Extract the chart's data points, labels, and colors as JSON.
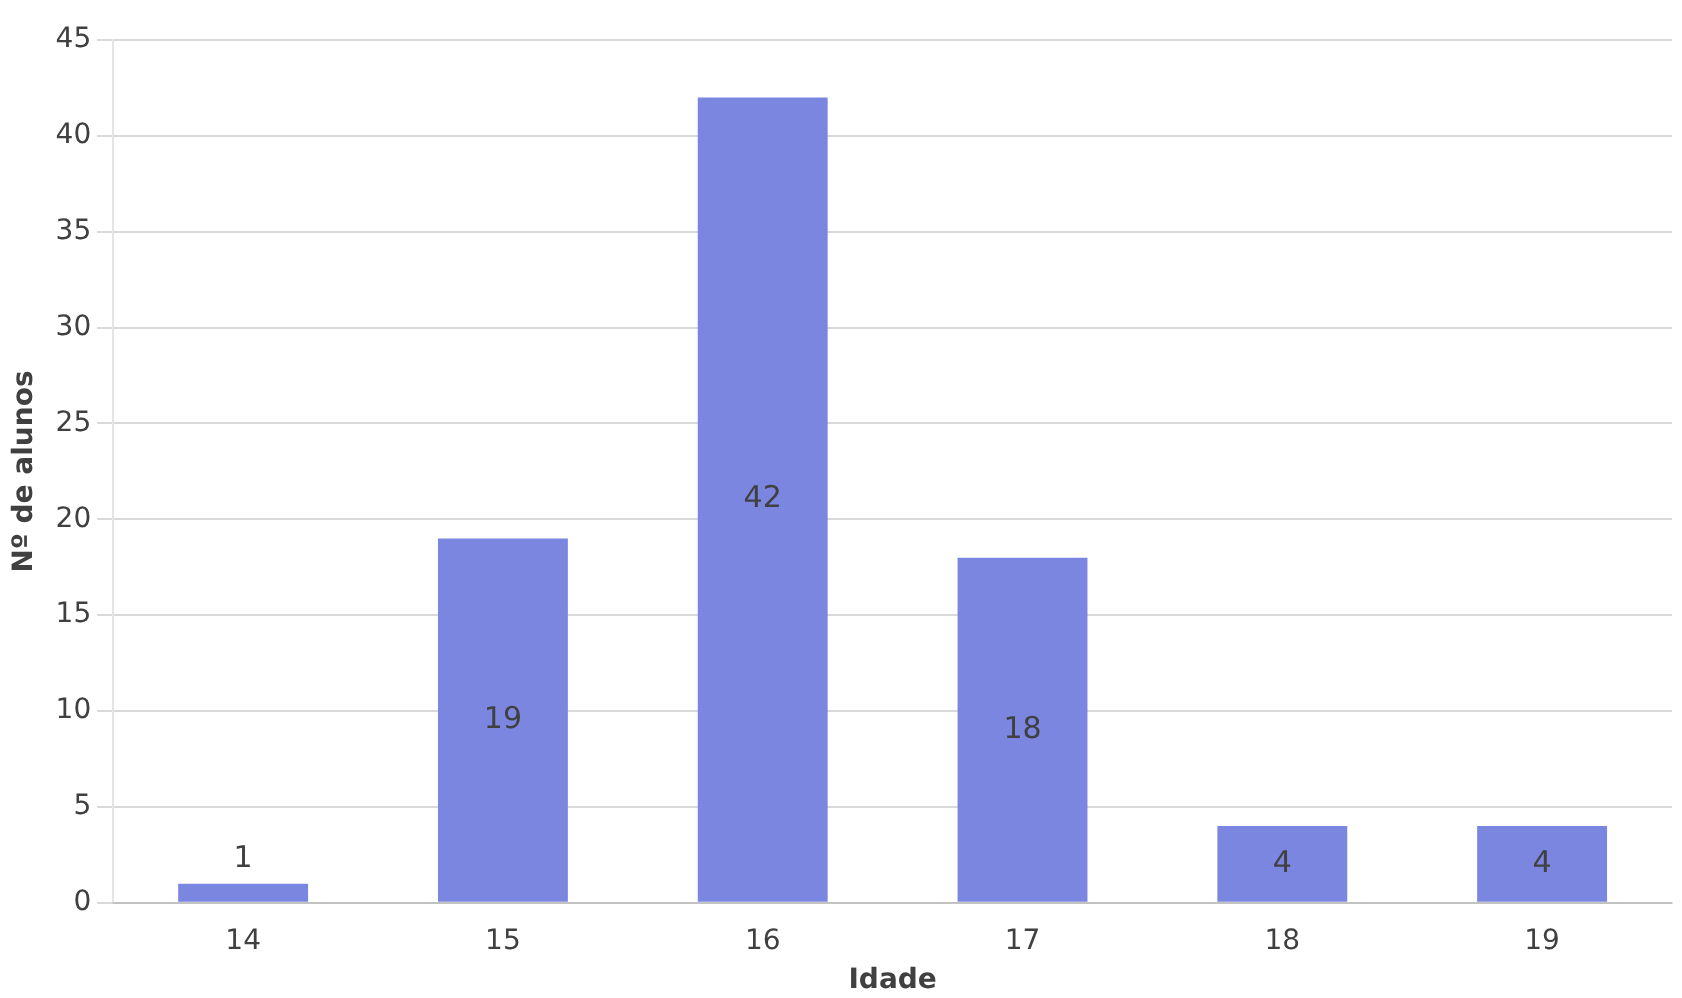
{
  "chart_data": {
    "type": "bar",
    "xlabel": "Idade",
    "ylabel": "Nº de alunos",
    "categories": [
      "14",
      "15",
      "16",
      "17",
      "18",
      "19"
    ],
    "values": [
      1,
      19,
      42,
      18,
      4,
      4
    ],
    "color": "#7b86e0",
    "ylim": [
      0,
      45
    ],
    "yticks": [
      0,
      5,
      10,
      15,
      20,
      25,
      30,
      35,
      40,
      45
    ],
    "grid": "y",
    "data_labels": true,
    "legend": false
  }
}
